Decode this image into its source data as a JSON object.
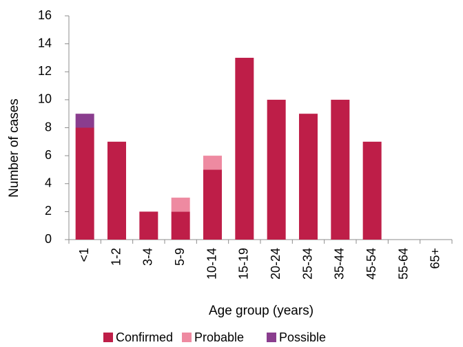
{
  "chart_data": {
    "type": "bar",
    "stacked": true,
    "title": "",
    "xlabel": "Age group (years)",
    "ylabel": "Number of cases",
    "ylim": [
      0,
      16
    ],
    "yticks": [
      0,
      2,
      4,
      6,
      8,
      10,
      12,
      14,
      16
    ],
    "grid": false,
    "legend_position": "bottom",
    "categories": [
      "<1",
      "1-2",
      "3-4",
      "5-9",
      "10-14",
      "15-19",
      "20-24",
      "25-34",
      "35-44",
      "45-54",
      "55-64",
      "65+"
    ],
    "series": [
      {
        "name": "Confirmed",
        "color": "#be1e48",
        "values": [
          8,
          7,
          2,
          2,
          5,
          13,
          10,
          9,
          10,
          7,
          0,
          0
        ]
      },
      {
        "name": "Probable",
        "color": "#ee8aa1",
        "values": [
          0,
          0,
          0,
          1,
          1,
          0,
          0,
          0,
          0,
          0,
          0,
          0
        ]
      },
      {
        "name": "Possible",
        "color": "#8a3d8e",
        "values": [
          1,
          0,
          0,
          0,
          0,
          0,
          0,
          0,
          0,
          0,
          0,
          0
        ]
      }
    ]
  }
}
